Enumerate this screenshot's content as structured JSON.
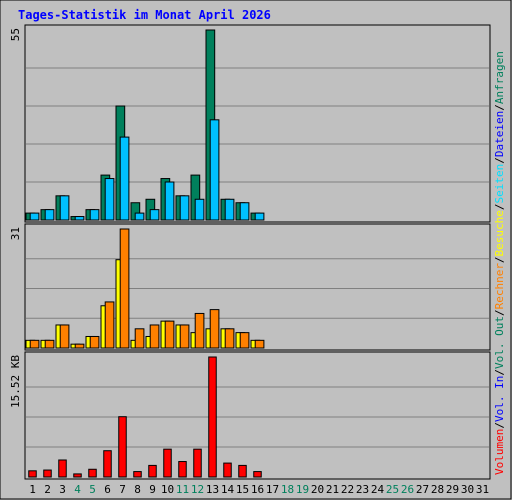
{
  "chart_data": {
    "type": "bar",
    "title": "Tages-Statistik im Monat April 2026",
    "x": [
      "1",
      "2",
      "3",
      "4",
      "5",
      "6",
      "7",
      "8",
      "9",
      "10",
      "11",
      "12",
      "13",
      "14",
      "15",
      "16",
      "17",
      "18",
      "19",
      "20",
      "21",
      "22",
      "23",
      "24",
      "25",
      "26",
      "27",
      "28",
      "29",
      "30",
      "31"
    ],
    "weekend_days": [
      "4",
      "5",
      "11",
      "12",
      "18",
      "19",
      "25",
      "26"
    ],
    "panels": [
      {
        "id": "top",
        "ymax_label": "55",
        "ylim": [
          0,
          55
        ],
        "series": [
          {
            "name": "Anfragen",
            "color": "#00805c",
            "values": [
              2,
              3,
              7,
              1,
              3,
              13,
              33,
              5,
              6,
              12,
              7,
              13,
              55,
              6,
              5,
              2,
              0,
              0,
              0,
              0,
              0,
              0,
              0,
              0,
              0,
              0,
              0,
              0,
              0,
              0,
              0
            ]
          },
          {
            "name": "Dateien",
            "color": "#00c0ff",
            "values": [
              2,
              3,
              7,
              1,
              3,
              12,
              24,
              2,
              3,
              11,
              7,
              6,
              29,
              6,
              5,
              2,
              0,
              0,
              0,
              0,
              0,
              0,
              0,
              0,
              0,
              0,
              0,
              0,
              0,
              0,
              0
            ]
          },
          {
            "name": "Seiten",
            "color": "#00e0ff",
            "values": []
          }
        ]
      },
      {
        "id": "middle",
        "ymax_label": "31",
        "ylim": [
          0,
          31
        ],
        "series": [
          {
            "name": "Besuche",
            "color": "#ffff00",
            "values": [
              2,
              2,
              6,
              1,
              3,
              11,
              23,
              2,
              3,
              7,
              6,
              4,
              5,
              5,
              4,
              2,
              0,
              0,
              0,
              0,
              0,
              0,
              0,
              0,
              0,
              0,
              0,
              0,
              0,
              0,
              0
            ]
          },
          {
            "name": "Rechner",
            "color": "#ff8000",
            "values": [
              2,
              2,
              6,
              1,
              3,
              12,
              31,
              5,
              6,
              7,
              6,
              9,
              10,
              5,
              4,
              2,
              0,
              0,
              0,
              0,
              0,
              0,
              0,
              0,
              0,
              0,
              0,
              0,
              0,
              0,
              0
            ]
          }
        ]
      },
      {
        "id": "bottom",
        "ymax_label": "15.52 KB",
        "ylim": [
          0,
          15.52
        ],
        "series": [
          {
            "name": "Volumen",
            "color": "#ff0000",
            "values": [
              0.8,
              0.9,
              2.2,
              0.4,
              1.0,
              3.4,
              7.8,
              0.7,
              1.5,
              3.6,
              2.0,
              3.6,
              15.52,
              1.8,
              1.5,
              0.7,
              0,
              0,
              0,
              0,
              0,
              0,
              0,
              0,
              0,
              0,
              0,
              0,
              0,
              0,
              0
            ]
          }
        ]
      }
    ],
    "legend": [
      {
        "text": "Volumen",
        "color": "#ff0000"
      },
      {
        "text": "Vol. In",
        "color": "#0000ff"
      },
      {
        "text": "Vol. Out",
        "color": "#00805c"
      },
      {
        "text": "Rechner",
        "color": "#ff8000"
      },
      {
        "text": "Besuche",
        "color": "#ffff00"
      },
      {
        "text": "Seiten",
        "color": "#00e0ff"
      },
      {
        "text": "Dateien",
        "color": "#0000ff"
      },
      {
        "text": "Anfragen",
        "color": "#00805c"
      }
    ],
    "legend_separator": "/",
    "grid": true,
    "legend_placement": "right"
  }
}
